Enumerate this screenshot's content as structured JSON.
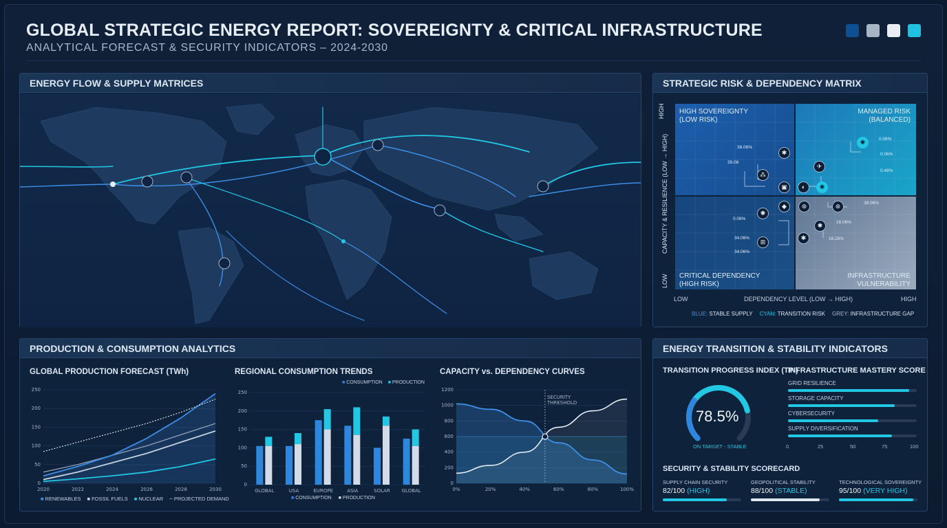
{
  "header": {
    "title": "GLOBAL STRATEGIC ENERGY REPORT: SOVEREIGNTY & CRITICAL INFRASTRUCTURE",
    "subtitle": "ANALYTICAL FORECAST & SECURITY INDICATORS – 2024-2030",
    "swatches": [
      "#0d4f93",
      "#a7b5c4",
      "#e9eef4",
      "#1fc2e1"
    ]
  },
  "map_panel": {
    "title": "ENERGY FLOW & SUPPLY MATRICES"
  },
  "risk_matrix": {
    "title": "STRATEGIC RISK & DEPENDENCY MATRIX",
    "y_axis_label": "CAPACITY & RESILIENCE (LOW → HIGH)",
    "y_high": "HIGH",
    "y_low": "LOW",
    "x_axis_label": "DEPENDENCY LEVEL (LOW → HIGH)",
    "x_low": "LOW",
    "x_high": "HIGH",
    "quadrants": {
      "top_left": [
        "HIGH SOVEREIGNTY",
        "(LOW RISK)"
      ],
      "top_right": [
        "MANAGED RISK",
        "(BALANCED)"
      ],
      "bottom_left": [
        "CRITICAL DEPENDENCY",
        "(HIGH RISK)"
      ],
      "bottom_right": [
        "INFRASTRUCTURE",
        "VULNERABILITY"
      ]
    },
    "values": [
      "38.06%",
      "39.06",
      "0.06%",
      "0.06%",
      "0.48%",
      "38.06%",
      "0.06%",
      "16.06%",
      "34.06%",
      "34.06%",
      "16.26%"
    ],
    "legend": [
      {
        "key": "BLUE:",
        "text": "STABLE SUPPLY",
        "color": "#3d8fe8"
      },
      {
        "key": "CYAN:",
        "text": "TRANSITION RISK",
        "color": "#22c7e3"
      },
      {
        "key": "GREY:",
        "text": "INFRASTRUCTURE GAP",
        "color": "#aab8c8"
      }
    ]
  },
  "analytics": {
    "title": "PRODUCTION & CONSUMPTION ANALYTICS"
  },
  "production_chart": {
    "title": "GLOBAL PRODUCTION FORECAST (TWh)"
  },
  "consumption_chart": {
    "title": "REGIONAL CONSUMPTION TRENDS",
    "legend_top": [
      "CONSUMPTION",
      "PRODUCTION"
    ],
    "legend_bottom": [
      "CONSUMPTION",
      "PRODUCTION"
    ]
  },
  "capacity_chart": {
    "title": "CAPACITY vs. DEPENDENCY CURVES",
    "threshold_label": [
      "SECURITY",
      "THRESHOLD"
    ]
  },
  "chart_data": [
    {
      "type": "line",
      "title": "GLOBAL PRODUCTION FORECAST (TWh)",
      "x": [
        "2020",
        "2022",
        "2024",
        "2026",
        "2028",
        "2030"
      ],
      "ylim": [
        0,
        250
      ],
      "yticks": [
        0,
        50,
        100,
        150,
        200,
        250
      ],
      "series": [
        {
          "name": "RENEWABLES",
          "color": "#3d8fe8",
          "values": [
            20,
            45,
            75,
            120,
            175,
            240
          ]
        },
        {
          "name": "FOSSIL FUELS",
          "color": "#c6d2e0",
          "values": [
            10,
            30,
            55,
            80,
            110,
            140
          ]
        },
        {
          "name": "NUCLEAR",
          "color": "#22c7e3",
          "values": [
            5,
            12,
            20,
            30,
            45,
            65
          ]
        },
        {
          "name": "PROJECTED DEMAND",
          "color": "#e6edf5",
          "dashed": true,
          "values": [
            85,
            110,
            135,
            160,
            190,
            225
          ]
        }
      ],
      "extra_line": {
        "color": "#8fa2b9",
        "values": [
          30,
          50,
          75,
          100,
          130,
          160
        ]
      }
    },
    {
      "type": "bar",
      "title": "REGIONAL CONSUMPTION TRENDS",
      "categories": [
        "GLOBAL",
        "USA",
        "EUROPE",
        "ASIA",
        "SOLAR",
        "GLOBAL"
      ],
      "ylim": [
        0,
        250
      ],
      "yticks": [
        0,
        50,
        100,
        150,
        200,
        250
      ],
      "series": [
        {
          "name": "CONSUMPTION",
          "color": "#2f86dd",
          "values": [
            105,
            105,
            175,
            160,
            100,
            125
          ]
        },
        {
          "name": "PRODUCTION",
          "color": "#d2dce8",
          "cap_color": "#22c7e3",
          "values": [
            105,
            110,
            150,
            135,
            160,
            105
          ],
          "totals": [
            130,
            140,
            205,
            210,
            185,
            150
          ]
        }
      ]
    },
    {
      "type": "line",
      "title": "CAPACITY vs. DEPENDENCY CURVES",
      "x": [
        "0%",
        "20%",
        "40%",
        "60%",
        "80%",
        "100%"
      ],
      "ylim": [
        0,
        1200
      ],
      "yticks": [
        0,
        200,
        400,
        600,
        800,
        1000,
        1200
      ],
      "series": [
        {
          "name": "DEPENDENCY",
          "color": "#3d8fe8",
          "points": [
            [
              0,
              1020
            ],
            [
              20,
              950
            ],
            [
              40,
              800
            ],
            [
              60,
              520
            ],
            [
              80,
              300
            ],
            [
              100,
              120
            ]
          ]
        },
        {
          "name": "CAPACITY",
          "color": "#e6edf5",
          "points": [
            [
              0,
              130
            ],
            [
              20,
              230
            ],
            [
              40,
              400
            ],
            [
              60,
              720
            ],
            [
              80,
              930
            ],
            [
              100,
              1080
            ]
          ]
        }
      ],
      "threshold_x": 52,
      "threshold_y": 600
    }
  ],
  "production_legend": [
    "RENEWABLES",
    "FOSSIL FUELS",
    "NUCLEAR",
    "PROJECTED DEMAND"
  ],
  "indicators": {
    "title": "ENERGY TRANSITION & STABILITY INDICATORS",
    "tpi": {
      "title": "TRANSITION PROGRESS INDEX (TPI)",
      "value_label": "78.5%",
      "value": 78.5,
      "status": "ON TARGET - STABLE"
    },
    "mastery": {
      "title": "INFRASTRUCTURE MASTERY SCORE",
      "rows": [
        {
          "label": "GRID RESILIENCE",
          "value": 94
        },
        {
          "label": "STORAGE CAPACITY",
          "value": 83
        },
        {
          "label": "CYBERSECURITY",
          "value": 70
        },
        {
          "label": "SUPPLY DIVERSIFICATION",
          "value": 81
        }
      ],
      "ticks": [
        "0",
        "25",
        "50",
        "75",
        "100"
      ]
    },
    "scorecard": {
      "title": "SECURITY & STABILITY SCORECARD",
      "items": [
        {
          "label": "SUPPLY CHAIN SECURITY",
          "value_text": "82/100",
          "status": "(HIGH)",
          "value": 82,
          "color": "#22c7e3"
        },
        {
          "label": "GEOPOLITICAL STABILITY",
          "value_text": "88/100",
          "status": "(STABLE)",
          "value": 88,
          "color": "#dfe7f1"
        },
        {
          "label": "TECHNOLOGICAL SOVEREIGNTY",
          "value_text": "95/100",
          "status": "(VERY HIGH)",
          "value": 95,
          "color": "#22c7e3"
        }
      ]
    }
  }
}
